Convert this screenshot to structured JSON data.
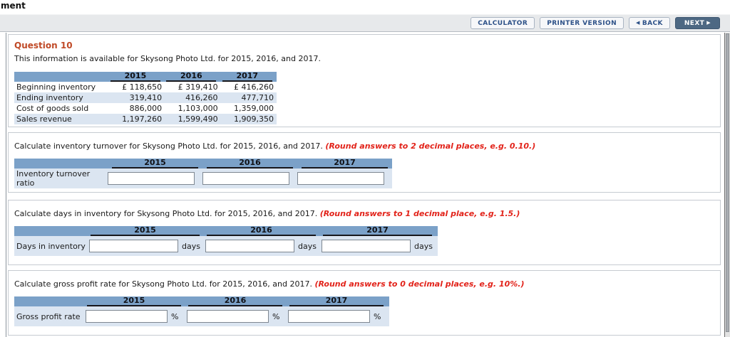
{
  "header": {
    "partial_title": "ment",
    "toolbar": {
      "calculator_label": "CALCULATOR",
      "printer_label": "PRINTER VERSION",
      "back_label": "BACK",
      "back_arrow": "◀",
      "next_label": "NEXT",
      "next_arrow": "▶"
    }
  },
  "question": {
    "title": "Question 10",
    "intro": "This information is available for Skysong Photo Ltd. for 2015, 2016, and 2017."
  },
  "years": [
    "2015",
    "2016",
    "2017"
  ],
  "data_table": {
    "rows": [
      {
        "label": "Beginning inventory",
        "values": [
          "£ 118,650",
          "£ 319,410",
          "£ 416,260"
        ]
      },
      {
        "label": "Ending inventory",
        "values": [
          "319,410",
          "416,260",
          "477,710"
        ]
      },
      {
        "label": "Cost of goods sold",
        "values": [
          "886,000",
          "1,103,000",
          "1,359,000"
        ]
      },
      {
        "label": "Sales revenue",
        "values": [
          "1,197,260",
          "1,599,490",
          "1,909,350"
        ]
      }
    ]
  },
  "sections": [
    {
      "prompt": "Calculate inventory turnover for Skysong Photo Ltd. for 2015, 2016, and 2017.",
      "note": "(Round answers to 2 decimal places, e.g. 0.10.)",
      "row_label": "Inventory turnover ratio",
      "unit": ""
    },
    {
      "prompt": "Calculate days in inventory for Skysong Photo Ltd. for 2015, 2016, and 2017.",
      "note": "(Round answers to 1 decimal place, e.g. 1.5.)",
      "row_label": "Days in inventory",
      "unit": "days"
    },
    {
      "prompt": "Calculate gross profit rate for Skysong Photo Ltd. for 2015, 2016, and 2017.",
      "note": "(Round answers to 0 decimal places, e.g. 10%.)",
      "row_label": "Gross profit rate",
      "unit": "%"
    }
  ],
  "colors": {
    "header-blue": "#7ba1c8",
    "row-blue": "#dbe5f1",
    "question-orange": "#c04a27",
    "note-red": "#e2231a",
    "toolbar-gray": "#e7e9eb",
    "next-btn-blue": "#4d6883",
    "btn-text-blue": "#2d5188"
  }
}
